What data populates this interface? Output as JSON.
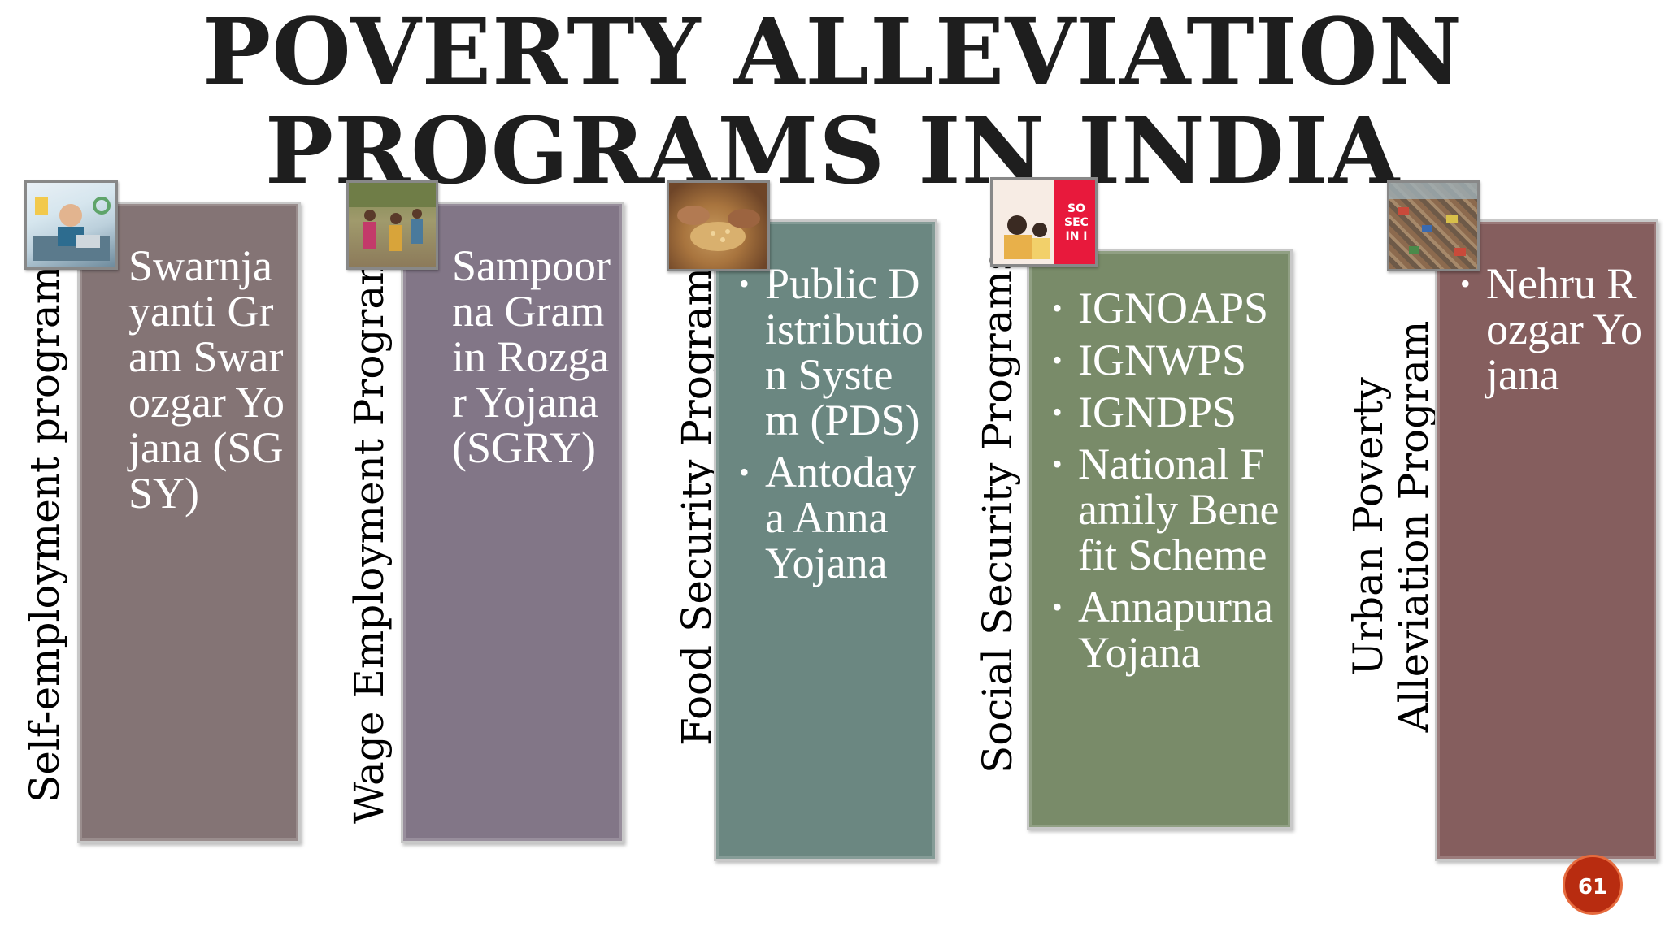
{
  "slide": {
    "title_line1": "POVERTY ALLEVIATION",
    "title_line2": "PROGRAMS IN INDIA",
    "page_number": "61"
  },
  "columns": [
    {
      "label": "Self-employment programs",
      "color": "#847475",
      "items": [
        "Swarnjayanti Gram Swarozgar Yojana (SGSY)"
      ]
    },
    {
      "label": "Wage Employment Program",
      "color": "#827687",
      "items": [
        "Sampoorna Gramin Rozgar Yojana (SGRY)"
      ]
    },
    {
      "label": "Food Security Programs",
      "color": "#6b8781",
      "items": [
        "Public Distribution System (PDS)",
        "Antodaya Anna Yojana"
      ]
    },
    {
      "label": "Social Security Programs",
      "color": "#798b69",
      "items": [
        "IGNOAPS",
        "IGNWPS",
        "IGNDPS",
        "National Family Benefit Scheme",
        "Annapurna Yojana"
      ]
    },
    {
      "label": "Urban Poverty Alleviation Program",
      "color": "#855e5e",
      "items": [
        "Nehru Rozgar Yojana"
      ]
    }
  ],
  "thumbnails": [
    {
      "icon": "office-worker-image"
    },
    {
      "icon": "rural-workers-image"
    },
    {
      "icon": "grain-hands-image"
    },
    {
      "icon": "social-security-image",
      "text": "SO SEC IN I"
    },
    {
      "icon": "urban-slum-image"
    }
  ]
}
